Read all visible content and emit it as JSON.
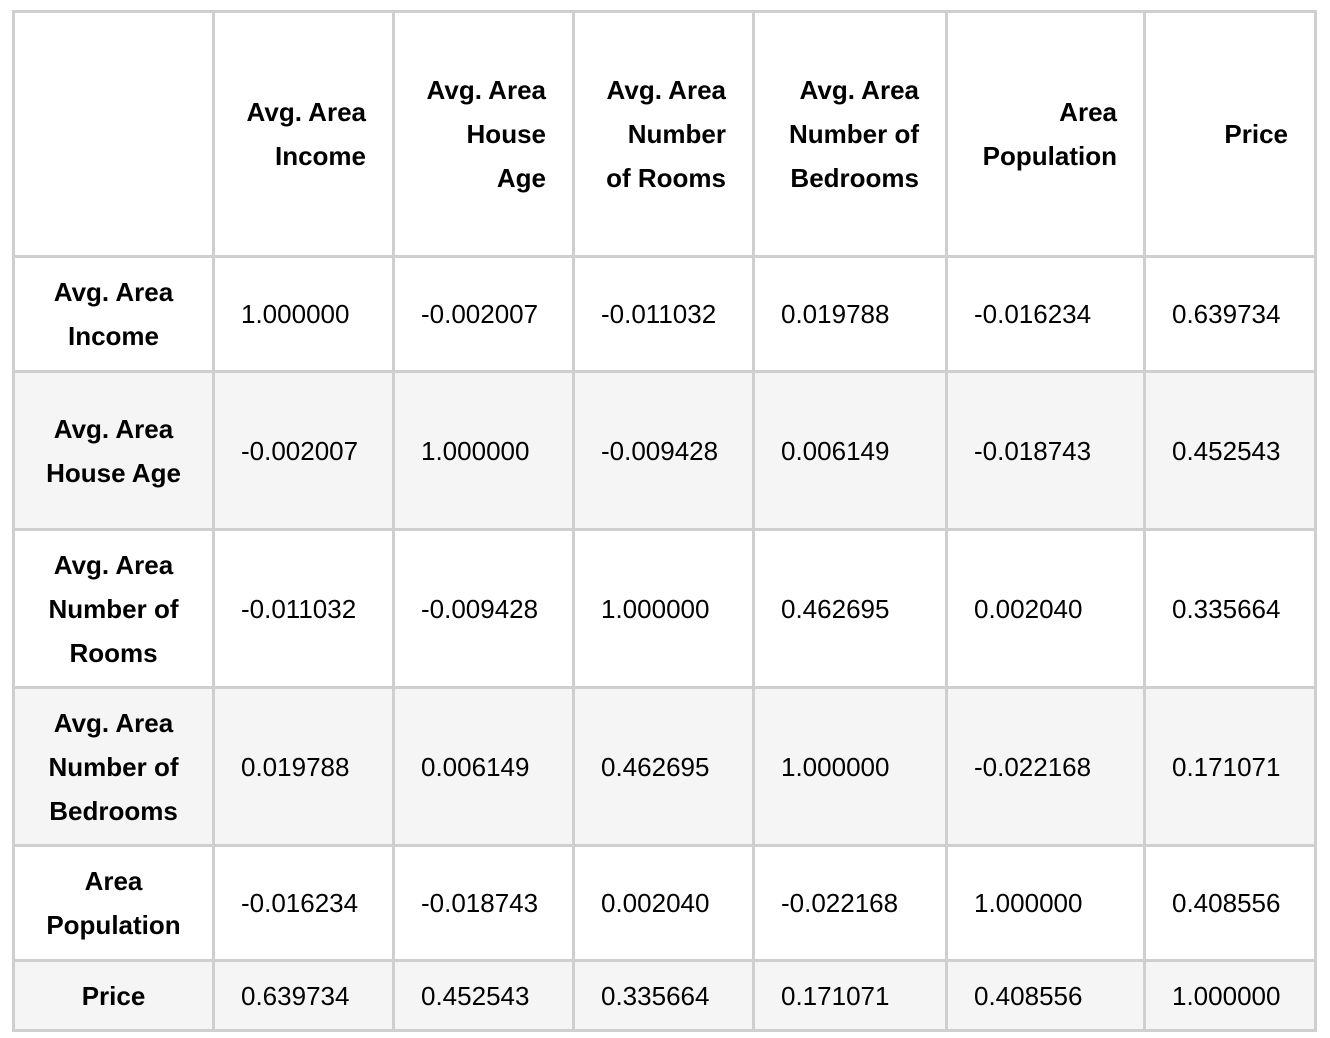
{
  "table": {
    "columns": [
      "",
      "Avg. Area Income",
      "Avg. Area House Age",
      "Avg. Area Number of Rooms",
      "Avg. Area Number of Bedrooms",
      "Area Population",
      "Price"
    ],
    "rows": [
      {
        "label": "Avg. Area Income",
        "values": [
          "1.000000",
          "-0.002007",
          "-0.011032",
          "0.019788",
          "-0.016234",
          "0.639734"
        ]
      },
      {
        "label": "Avg. Area House Age",
        "values": [
          "-0.002007",
          "1.000000",
          "-0.009428",
          "0.006149",
          "-0.018743",
          "0.452543"
        ]
      },
      {
        "label": "Avg. Area Number of Rooms",
        "values": [
          "-0.011032",
          "-0.009428",
          "1.000000",
          "0.462695",
          "0.002040",
          "0.335664"
        ]
      },
      {
        "label": "Avg. Area Number of Bedrooms",
        "values": [
          "0.019788",
          "0.006149",
          "0.462695",
          "1.000000",
          "-0.022168",
          "0.171071"
        ]
      },
      {
        "label": "Area Population",
        "values": [
          "-0.016234",
          "-0.018743",
          "0.002040",
          "-0.022168",
          "1.000000",
          "0.408556"
        ]
      },
      {
        "label": "Price",
        "values": [
          "0.639734",
          "0.452543",
          "0.335664",
          "0.171071",
          "0.408556",
          "1.000000"
        ]
      }
    ]
  },
  "chart_data": {
    "type": "table",
    "categories": [
      "Avg. Area Income",
      "Avg. Area House Age",
      "Avg. Area Number of Rooms",
      "Avg. Area Number of Bedrooms",
      "Area Population",
      "Price"
    ],
    "series": [
      {
        "name": "Avg. Area Income",
        "values": [
          1.0,
          -0.002007,
          -0.011032,
          0.019788,
          -0.016234,
          0.639734
        ]
      },
      {
        "name": "Avg. Area House Age",
        "values": [
          -0.002007,
          1.0,
          -0.009428,
          0.006149,
          -0.018743,
          0.452543
        ]
      },
      {
        "name": "Avg. Area Number of Rooms",
        "values": [
          -0.011032,
          -0.009428,
          1.0,
          0.462695,
          0.00204,
          0.335664
        ]
      },
      {
        "name": "Avg. Area Number of Bedrooms",
        "values": [
          0.019788,
          0.006149,
          0.462695,
          1.0,
          -0.022168,
          0.171071
        ]
      },
      {
        "name": "Area Population",
        "values": [
          -0.016234,
          -0.018743,
          0.00204,
          -0.022168,
          1.0,
          0.408556
        ]
      },
      {
        "name": "Price",
        "values": [
          0.639734,
          0.452543,
          0.335664,
          0.171071,
          0.408556,
          1.0
        ]
      }
    ]
  }
}
